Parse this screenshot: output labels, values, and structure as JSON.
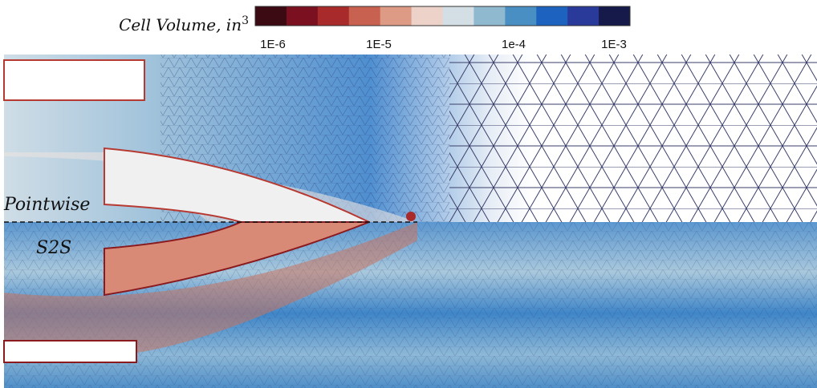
{
  "colorbar": {
    "title": "Cell Volume, in",
    "title_superscript": "3",
    "colors": [
      "#3b0a12",
      "#7a1020",
      "#a82a2a",
      "#c8614f",
      "#dd9a85",
      "#ecd2c8",
      "#d3dfe4",
      "#8fb9cf",
      "#4a8fc4",
      "#1e62c0",
      "#2a3a9a",
      "#151a4a"
    ],
    "labels": [
      "1E-6",
      "1E-5",
      "1e-4",
      "1E-3"
    ]
  },
  "regions": {
    "top": "Pointwise",
    "bottom": "S2S"
  }
}
